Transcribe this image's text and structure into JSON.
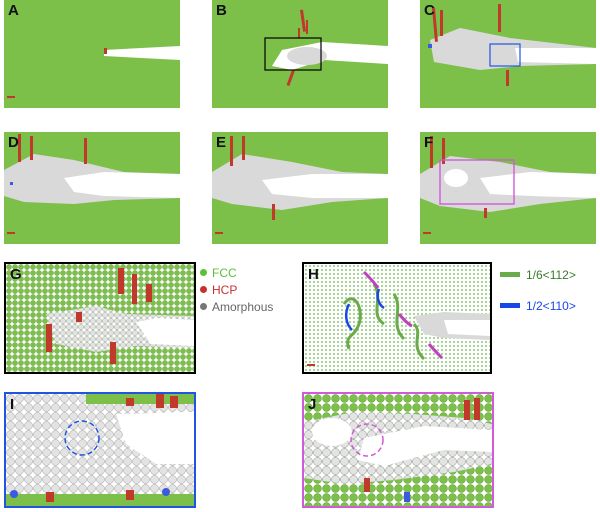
{
  "panels": [
    {
      "id": "A",
      "label": "A"
    },
    {
      "id": "B",
      "label": "B"
    },
    {
      "id": "C",
      "label": "C"
    },
    {
      "id": "D",
      "label": "D"
    },
    {
      "id": "E",
      "label": "E"
    },
    {
      "id": "F",
      "label": "F"
    },
    {
      "id": "G",
      "label": "G"
    },
    {
      "id": "H",
      "label": "H"
    },
    {
      "id": "I",
      "label": "I"
    },
    {
      "id": "J",
      "label": "J"
    }
  ],
  "legend_atoms": [
    {
      "label": "FCC",
      "color": "#5cbf3a"
    },
    {
      "label": "HCP",
      "color": "#c83030"
    },
    {
      "label": "Amorphous",
      "color": "#777777"
    }
  ],
  "legend_dislocations": [
    {
      "label": "1/6<112>",
      "color": "#6aac4a"
    },
    {
      "label": "1/2<110>",
      "color": "#1a46e8"
    }
  ],
  "colors": {
    "fcc": "#7cc04a",
    "hcp": "#c0392b",
    "amorphous": "#d9d9d9",
    "box_b": "#000000",
    "box_c": "#1f55e0",
    "box_f": "#d05ad8"
  }
}
